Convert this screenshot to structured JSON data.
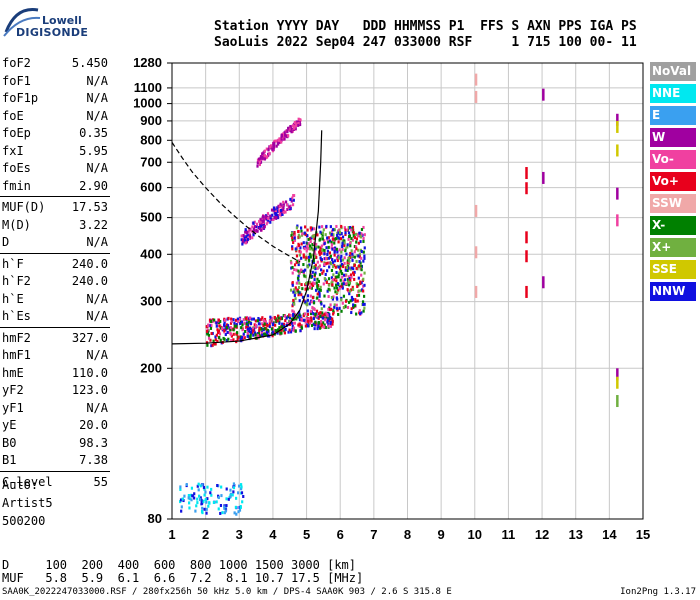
{
  "logo": {
    "line1": "Lowell",
    "line2": "DIGISONDE"
  },
  "header": {
    "row1": "Station YYYY DAY   DDD HHMMSS P1  FFS S AXN PPS IGA PS",
    "row2": "SaoLuis 2022 Sep04 247 033000 RSF     1 715 100 00- 11"
  },
  "params": [
    {
      "label": "foF2",
      "value": "5.450"
    },
    {
      "label": "foF1",
      "value": "N/A"
    },
    {
      "label": "foF1p",
      "value": "N/A"
    },
    {
      "label": "foE",
      "value": "N/A"
    },
    {
      "label": "foEp",
      "value": "0.35"
    },
    {
      "label": "fxI",
      "value": "5.95"
    },
    {
      "label": "foEs",
      "value": "N/A"
    },
    {
      "label": "fmin",
      "value": "2.90"
    },
    {
      "label": "MUF(D)",
      "value": "17.53"
    },
    {
      "label": "M(D)",
      "value": "3.22"
    },
    {
      "label": "D",
      "value": "N/A"
    },
    {
      "label": "h`F",
      "value": "240.0"
    },
    {
      "label": "h`F2",
      "value": "240.0"
    },
    {
      "label": "h`E",
      "value": "N/A"
    },
    {
      "label": "h`Es",
      "value": "N/A"
    },
    {
      "label": "hmF2",
      "value": "327.0"
    },
    {
      "label": "hmF1",
      "value": "N/A"
    },
    {
      "label": "hmE",
      "value": "110.0"
    },
    {
      "label": "yF2",
      "value": "123.0"
    },
    {
      "label": "yF1",
      "value": "N/A"
    },
    {
      "label": "yE",
      "value": "20.0"
    },
    {
      "label": "B0",
      "value": "98.3"
    },
    {
      "label": "B1",
      "value": "7.38"
    },
    {
      "label": "C-level",
      "value": "55"
    }
  ],
  "autoscale": {
    "line1": "Auto:",
    "line2": "Artist5",
    "line3": "500200"
  },
  "legend": [
    {
      "label": "NoVal",
      "color": "#a0a0a0"
    },
    {
      "label": "NNE",
      "color": "#00e8f0"
    },
    {
      "label": "E",
      "color": "#3aa0f0"
    },
    {
      "label": "W",
      "color": "#a000a0"
    },
    {
      "label": "Vo-",
      "color": "#f040a0"
    },
    {
      "label": "Vo+",
      "color": "#e8001c"
    },
    {
      "label": "SSW",
      "color": "#f0a8a8"
    },
    {
      "label": "X-",
      "color": "#008000"
    },
    {
      "label": "X+",
      "color": "#70b040"
    },
    {
      "label": "SSE",
      "color": "#d0c800"
    },
    {
      "label": "NNW",
      "color": "#1010e0"
    }
  ],
  "muf_table": {
    "d_row": "D     100  200  400  600  800 1000 1500 3000 [km]",
    "muf_row": "MUF   5.8  5.9  6.1  6.6  7.2  8.1 10.7 17.5 [MHz]"
  },
  "footer": {
    "text": "SAA0K_2022247033000.RSF / 280fx256h 50 kHz 5.0 km / DPS-4 SAA0K 903 / 2.6 S 315.8 E",
    "version": "Ion2Png 1.3.17"
  },
  "chart_data": {
    "type": "scatter",
    "title": "",
    "xlabel": "",
    "ylabel": "",
    "xlim": [
      1,
      15
    ],
    "ylim": [
      80,
      1280
    ],
    "x_ticks": [
      1,
      2,
      3,
      4,
      5,
      6,
      7,
      8,
      9,
      10,
      11,
      12,
      13,
      14,
      15
    ],
    "y_ticks": [
      80,
      200,
      300,
      400,
      500,
      600,
      700,
      800,
      900,
      1000,
      1100,
      1280
    ],
    "y_scale": "log",
    "grid": true,
    "legend_position": "right",
    "ordinary_trace": {
      "x": [
        1.0,
        2.0,
        3.0,
        4.0,
        4.5,
        4.8,
        5.0,
        5.2,
        5.35,
        5.42,
        5.45
      ],
      "y": [
        232,
        233,
        236,
        245,
        262,
        285,
        320,
        390,
        520,
        700,
        850
      ]
    },
    "profile_trace": {
      "x": [
        1.0,
        1.3,
        1.6,
        2.0,
        2.4,
        2.8,
        3.2,
        3.6,
        4.0,
        4.4,
        4.8
      ],
      "y": [
        790,
        720,
        660,
        600,
        550,
        510,
        475,
        445,
        420,
        400,
        382
      ]
    },
    "echo_clusters": [
      {
        "name": "F-layer O",
        "x": [
          2.0,
          5.8
        ],
        "y": [
          225,
          300
        ],
        "colors": [
          "#1010e0",
          "#e8001c",
          "#f040a0",
          "#008000"
        ]
      },
      {
        "name": "spread F",
        "x": [
          4.5,
          6.7
        ],
        "y": [
          280,
          480
        ],
        "colors": [
          "#e8001c",
          "#f040a0",
          "#008000",
          "#70b040",
          "#1010e0"
        ]
      },
      {
        "name": "second hop",
        "x": [
          3.0,
          4.6
        ],
        "y": [
          440,
          560
        ],
        "colors": [
          "#1010e0",
          "#a000a0",
          "#f040a0"
        ]
      },
      {
        "name": "third hop",
        "x": [
          3.5,
          4.8
        ],
        "y": [
          700,
          910
        ],
        "colors": [
          "#a000a0",
          "#f040a0"
        ]
      },
      {
        "name": "low echoes",
        "x": [
          1.2,
          3.1
        ],
        "y": [
          83,
          100
        ],
        "colors": [
          "#1010e0",
          "#00e8f0",
          "#3aa0f0"
        ]
      }
    ]
  }
}
